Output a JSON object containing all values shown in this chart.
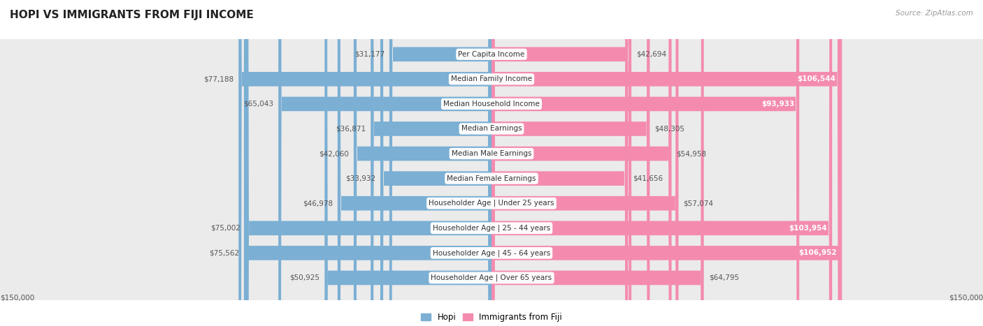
{
  "title": "HOPI VS IMMIGRANTS FROM FIJI INCOME",
  "source": "Source: ZipAtlas.com",
  "categories": [
    "Per Capita Income",
    "Median Family Income",
    "Median Household Income",
    "Median Earnings",
    "Median Male Earnings",
    "Median Female Earnings",
    "Householder Age | Under 25 years",
    "Householder Age | 25 - 44 years",
    "Householder Age | 45 - 64 years",
    "Householder Age | Over 65 years"
  ],
  "hopi_values": [
    31177,
    77188,
    65043,
    36871,
    42060,
    33932,
    46978,
    75002,
    75562,
    50925
  ],
  "fiji_values": [
    42694,
    106544,
    93933,
    48305,
    54958,
    41656,
    57074,
    103954,
    106952,
    64795
  ],
  "hopi_color": "#7bafd4",
  "fiji_color": "#f48baf",
  "hopi_label": "Hopi",
  "fiji_label": "Immigrants from Fiji",
  "max_value": 150000,
  "background_color": "#ffffff",
  "row_bg_color": "#ebebeb",
  "title_fontsize": 11,
  "label_fontsize": 7.5,
  "value_fontsize": 7.5,
  "legend_fontsize": 8.5,
  "source_fontsize": 7.5,
  "fiji_inside_threshold": 90000,
  "hopi_inside_threshold": 0
}
